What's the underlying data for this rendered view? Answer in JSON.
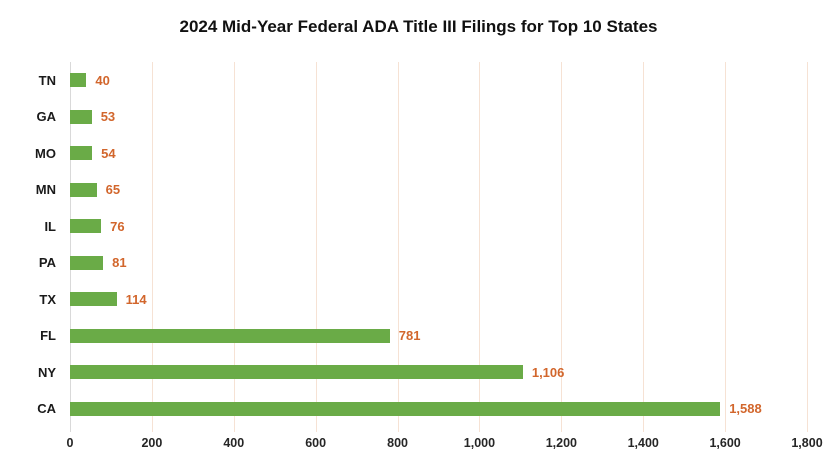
{
  "chart_data": {
    "type": "bar",
    "orientation": "horizontal",
    "title": "2024 Mid-Year Federal ADA Title III Filings for Top 10 States",
    "categories": [
      "TN",
      "GA",
      "MO",
      "MN",
      "IL",
      "PA",
      "TX",
      "FL",
      "NY",
      "CA"
    ],
    "values": [
      40,
      53,
      54,
      65,
      76,
      81,
      114,
      781,
      1106,
      1588
    ],
    "value_labels": [
      "40",
      "53",
      "54",
      "65",
      "76",
      "81",
      "114",
      "781",
      "1,106",
      "1,588"
    ],
    "xlabel": "",
    "ylabel": "",
    "xlim": [
      0,
      1800
    ],
    "x_tick_values": [
      0,
      200,
      400,
      600,
      800,
      1000,
      1200,
      1400,
      1600,
      1800
    ],
    "x_tick_labels": [
      "0",
      "200",
      "400",
      "600",
      "800",
      "1,000",
      "1,200",
      "1,400",
      "1,600",
      "1,800"
    ],
    "grid": "vertical-gridlines-on",
    "legend": "none",
    "colors": {
      "bar": "#6aab47",
      "value_label": "#d2662c",
      "gridline": "#f6e2d4",
      "axis_line": "#d9d9d9",
      "tick_text": "#262626",
      "category_text": "#1a1a1a",
      "background": "#ffffff"
    }
  }
}
